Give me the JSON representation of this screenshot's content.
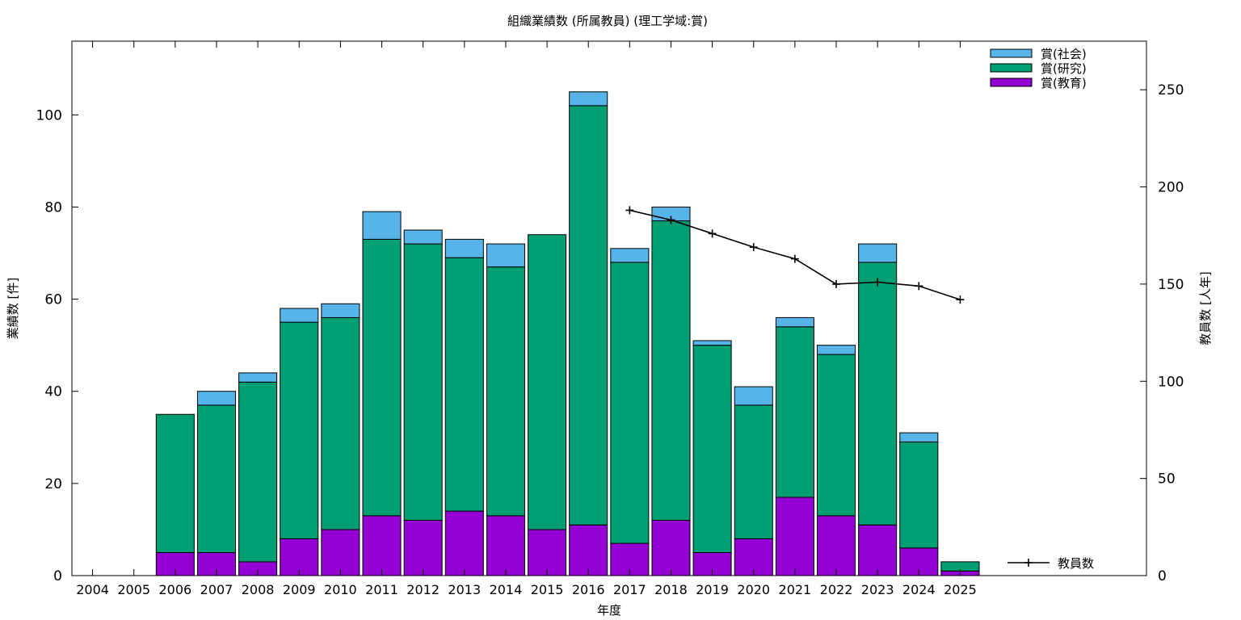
{
  "chart_data": {
    "type": "bar",
    "stacked": true,
    "title": "組織業績数 (所属教員) (理工学域:賞)",
    "xlabel": "年度",
    "ylabel": "業績数 [件]",
    "y2label": "教員数 [人年]",
    "categories": [
      "2004",
      "2005",
      "2006",
      "2007",
      "2008",
      "2009",
      "2010",
      "2011",
      "2012",
      "2013",
      "2014",
      "2015",
      "2016",
      "2017",
      "2018",
      "2019",
      "2020",
      "2021",
      "2022",
      "2023",
      "2024",
      "2025"
    ],
    "ylim": [
      0,
      116
    ],
    "y2lim": [
      0,
      275
    ],
    "yticks": [
      0,
      20,
      40,
      60,
      80,
      100
    ],
    "y2ticks": [
      0,
      50,
      100,
      150,
      200,
      250
    ],
    "grid": false,
    "legend_position": "top-right",
    "series": [
      {
        "name": "賞(教育)",
        "color": "#9400d3",
        "values": [
          0,
          0,
          5,
          5,
          3,
          8,
          10,
          13,
          12,
          14,
          13,
          10,
          11,
          7,
          12,
          5,
          8,
          17,
          13,
          11,
          6,
          1
        ]
      },
      {
        "name": "賞(研究)",
        "color": "#009e73",
        "values": [
          0,
          0,
          30,
          32,
          39,
          47,
          46,
          60,
          60,
          55,
          54,
          64,
          91,
          61,
          65,
          45,
          29,
          37,
          35,
          57,
          23,
          2
        ]
      },
      {
        "name": "賞(社会)",
        "color": "#56b4e9",
        "values": [
          0,
          0,
          0,
          3,
          2,
          3,
          3,
          6,
          3,
          4,
          5,
          0,
          3,
          3,
          3,
          1,
          4,
          2,
          2,
          4,
          2,
          0
        ]
      }
    ],
    "line_series": {
      "name": "教員数",
      "color": "#000000",
      "axis": "y2",
      "x": [
        "2017",
        "2018",
        "2019",
        "2020",
        "2021",
        "2022",
        "2023",
        "2024",
        "2025"
      ],
      "values": [
        188,
        183,
        176,
        169,
        163,
        150,
        151,
        149,
        142
      ]
    }
  }
}
